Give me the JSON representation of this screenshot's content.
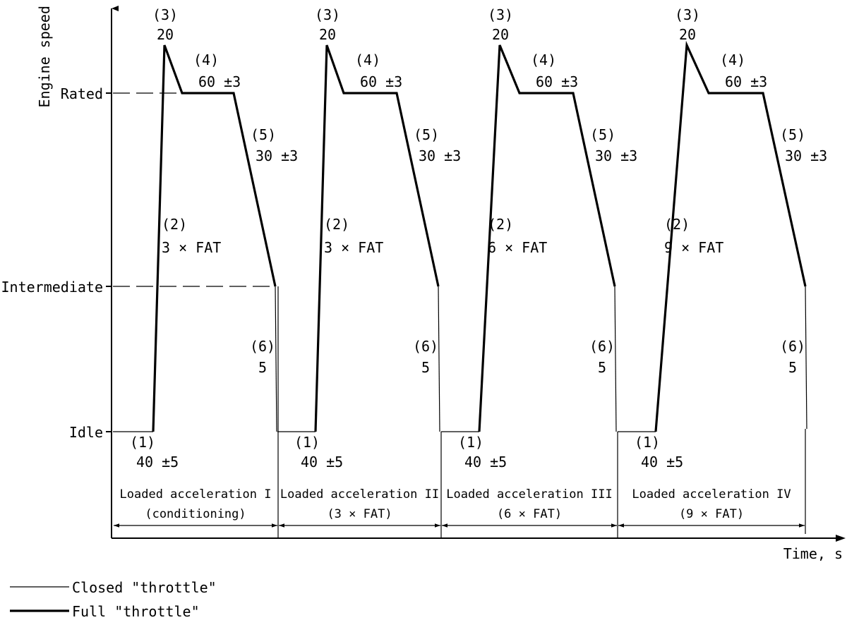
{
  "axes": {
    "y_label": "Engine speed",
    "x_label": "Time, s",
    "y_levels": [
      "Rated",
      "Intermediate",
      "Idle"
    ]
  },
  "cycles": [
    {
      "phase1": {
        "num": "(1)",
        "val": "40 ±5"
      },
      "phase2": {
        "num": "(2)",
        "val": "3 × FAT"
      },
      "phase3": {
        "num": "(3)",
        "val": "20"
      },
      "phase4": {
        "num": "(4)",
        "val": "60 ±3"
      },
      "phase5": {
        "num": "(5)",
        "val": "30 ±3"
      },
      "phase6": {
        "num": "(6)",
        "val": "5"
      },
      "caption": [
        "Loaded acceleration I",
        "(conditioning)"
      ]
    },
    {
      "phase1": {
        "num": "(1)",
        "val": "40 ±5"
      },
      "phase2": {
        "num": "(2)",
        "val": "3 × FAT"
      },
      "phase3": {
        "num": "(3)",
        "val": "20"
      },
      "phase4": {
        "num": "(4)",
        "val": "60 ±3"
      },
      "phase5": {
        "num": "(5)",
        "val": "30 ±3"
      },
      "phase6": {
        "num": "(6)",
        "val": "5"
      },
      "caption": [
        "Loaded acceleration II",
        "(3 × FAT)"
      ]
    },
    {
      "phase1": {
        "num": "(1)",
        "val": "40 ±5"
      },
      "phase2": {
        "num": "(2)",
        "val": "6 × FAT"
      },
      "phase3": {
        "num": "(3)",
        "val": "20"
      },
      "phase4": {
        "num": "(4)",
        "val": "60 ±3"
      },
      "phase5": {
        "num": "(5)",
        "val": "30 ±3"
      },
      "phase6": {
        "num": "(6)",
        "val": "5"
      },
      "caption": [
        "Loaded acceleration III",
        "(6 × FAT)"
      ]
    },
    {
      "phase1": {
        "num": "(1)",
        "val": "40 ±5"
      },
      "phase2": {
        "num": "(2)",
        "val": "9 × FAT"
      },
      "phase3": {
        "num": "(3)",
        "val": "20"
      },
      "phase4": {
        "num": "(4)",
        "val": "60 ±3"
      },
      "phase5": {
        "num": "(5)",
        "val": "30 ±3"
      },
      "phase6": {
        "num": "(6)",
        "val": "5"
      },
      "caption": [
        "Loaded acceleration IV",
        "(9 × FAT)"
      ]
    }
  ],
  "legend": {
    "closed": "Closed \"throttle\"",
    "full": "Full \"throttle\""
  }
}
